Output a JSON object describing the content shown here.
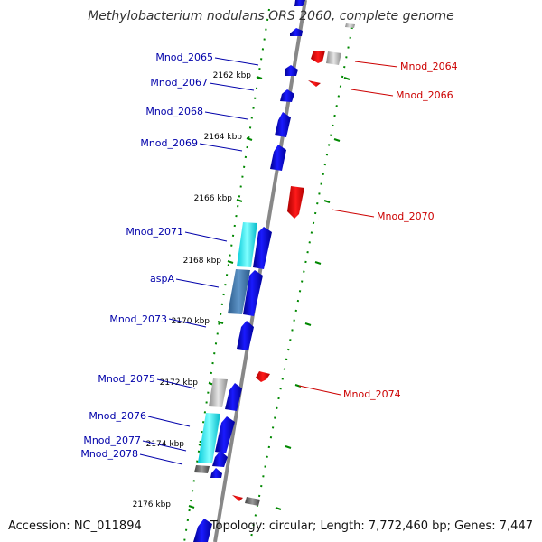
{
  "title": "Methylobacterium nodulans ORS 2060, complete genome",
  "accession_text": "Accession: NC_011894",
  "summary_text": "Topology: circular; Length: 7,772,460 bp; Genes: 7,447",
  "colors": {
    "forward_cds": "#0000ee",
    "reverse_cds": "#ee0000",
    "forward_label": "#0000aa",
    "reverse_label": "#cc0000",
    "backbone": "#888888",
    "tick": "#008800",
    "other_feature": "#00e5ee",
    "gray_feature": "#aaaaaa"
  },
  "ticks": [
    {
      "label": "2162 kbp"
    },
    {
      "label": "2164 kbp"
    },
    {
      "label": "2166 kbp"
    },
    {
      "label": "2168 kbp"
    },
    {
      "label": "2170 kbp"
    },
    {
      "label": "2172 kbp"
    },
    {
      "label": "2174 kbp"
    },
    {
      "label": "2176 kbp"
    }
  ],
  "genes": [
    {
      "label": "Mnod_2064",
      "strand": "reverse"
    },
    {
      "label": "Mnod_2065",
      "strand": "forward"
    },
    {
      "label": "Mnod_2066",
      "strand": "reverse"
    },
    {
      "label": "Mnod_2067",
      "strand": "forward"
    },
    {
      "label": "Mnod_2068",
      "strand": "forward"
    },
    {
      "label": "Mnod_2069",
      "strand": "forward"
    },
    {
      "label": "Mnod_2070",
      "strand": "reverse"
    },
    {
      "label": "Mnod_2071",
      "strand": "forward"
    },
    {
      "label": "aspA",
      "strand": "forward"
    },
    {
      "label": "Mnod_2073",
      "strand": "forward"
    },
    {
      "label": "Mnod_2074",
      "strand": "reverse"
    },
    {
      "label": "Mnod_2075",
      "strand": "forward"
    },
    {
      "label": "Mnod_2076",
      "strand": "forward"
    },
    {
      "label": "Mnod_2077",
      "strand": "forward"
    },
    {
      "label": "Mnod_2078",
      "strand": "forward"
    }
  ]
}
